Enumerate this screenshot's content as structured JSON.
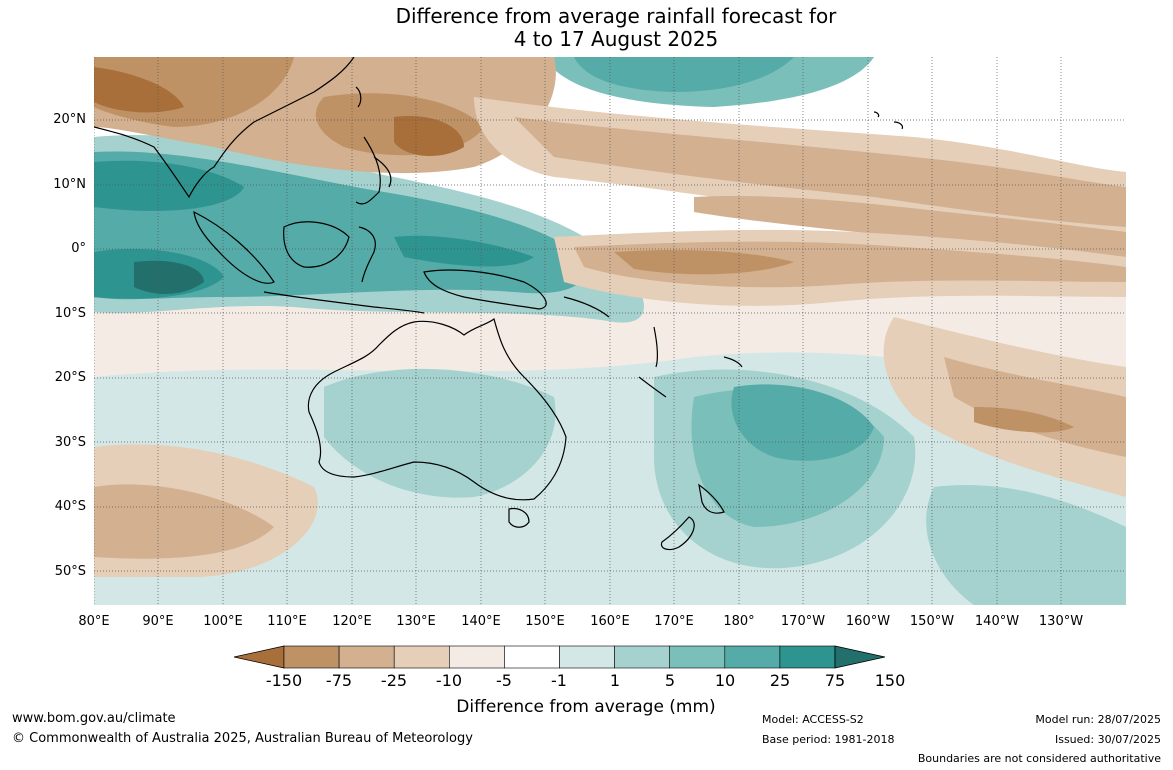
{
  "title_line1": "Difference from average rainfall forecast for",
  "title_line2": "4 to 17 August 2025",
  "lat_labels": [
    "20°N",
    "10°N",
    "0°",
    "10°S",
    "20°S",
    "30°S",
    "40°S",
    "50°S"
  ],
  "lon_labels": [
    "80°E",
    "90°E",
    "100°E",
    "110°E",
    "120°E",
    "130°E",
    "140°E",
    "150°E",
    "160°E",
    "170°E",
    "180°",
    "170°W",
    "160°W",
    "150°W",
    "140°W",
    "130°W"
  ],
  "colorbar": {
    "ticks": [
      "-150",
      "-75",
      "-25",
      "-10",
      "-5",
      "-1",
      "1",
      "5",
      "10",
      "25",
      "75",
      "150"
    ],
    "colors": [
      "#a86f3a",
      "#bf9266",
      "#d3b08f",
      "#e5cfb9",
      "#f4ebe4",
      "#ffffff",
      "#d3e8e6",
      "#a5d2cf",
      "#7bbfba",
      "#55aba7",
      "#2e9490",
      "#236f6c"
    ],
    "label": "Difference from average (mm)"
  },
  "footer": {
    "website": "www.bom.gov.au/climate",
    "copyright": "© Commonwealth of Australia 2025, Australian Bureau of Meteorology",
    "model": "Model: ACCESS-S2",
    "base_period": "Base period: 1981-2018",
    "model_run": "Model run: 28/07/2025",
    "issued": "Issued: 30/07/2025",
    "disclaimer": "Boundaries are not considered authoritative"
  }
}
